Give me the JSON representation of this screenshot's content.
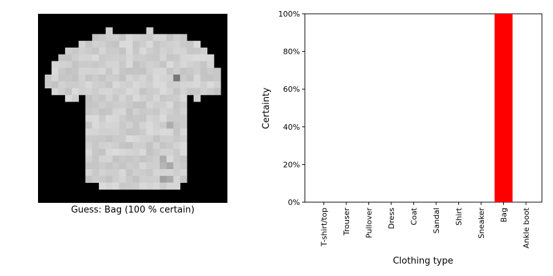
{
  "image_panel": {
    "caption": "Guess: Bag (100 % certain)",
    "description_icon": "tshirt-pixel-image"
  },
  "chart_data": {
    "type": "bar",
    "categories": [
      "T-shirt/top",
      "Trouser",
      "Pullover",
      "Dress",
      "Coat",
      "Sandal",
      "Shirt",
      "Sneaker",
      "Bag",
      "Ankle boot"
    ],
    "values": [
      0,
      0,
      0,
      0,
      0,
      0,
      0,
      0,
      100,
      0
    ],
    "xlabel": "Clothing type",
    "ylabel": "Certainty",
    "ylim": [
      0,
      100
    ],
    "yticks": [
      "0%",
      "20%",
      "40%",
      "60%",
      "80%",
      "100%"
    ],
    "ytick_values": [
      0,
      20,
      40,
      60,
      80,
      100
    ],
    "bar_color": "#ff0000",
    "grid": false
  }
}
